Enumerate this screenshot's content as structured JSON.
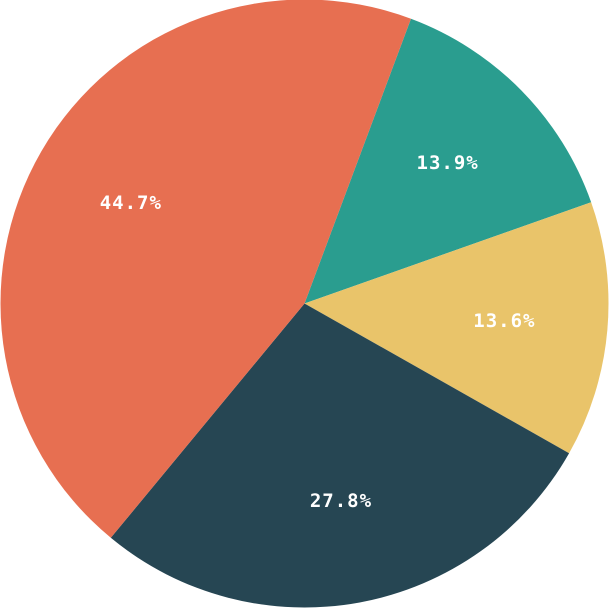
{
  "chart_data": {
    "type": "pie",
    "slices": [
      {
        "label": "13.9%",
        "value": 13.9,
        "color": "#2a9d8f"
      },
      {
        "label": "13.6%",
        "value": 13.6,
        "color": "#e9c46a"
      },
      {
        "label": "27.8%",
        "value": 27.8,
        "color": "#264653"
      },
      {
        "label": "44.7%",
        "value": 44.7,
        "color": "#e76f51"
      }
    ],
    "start_angle_deg": -69.5,
    "direction": "clockwise",
    "legend": "none",
    "title": ""
  }
}
